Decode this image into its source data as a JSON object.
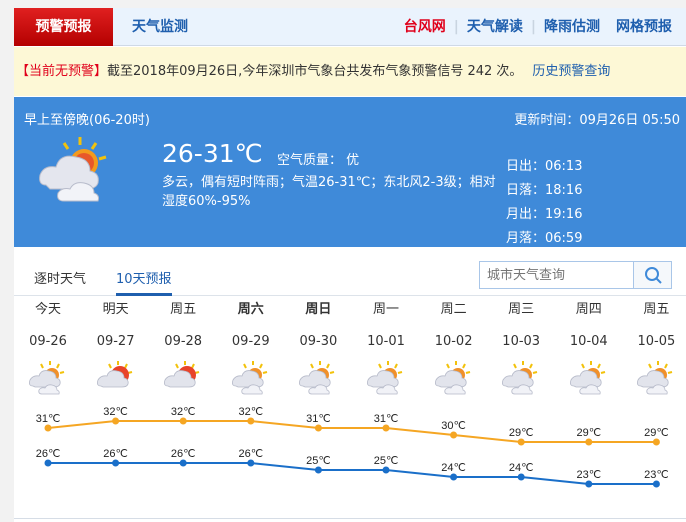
{
  "nav": {
    "active_tab": "预警预报",
    "tab2": "天气监测",
    "links": [
      {
        "label": "台风网",
        "color": "#e0001b"
      },
      {
        "label": "天气解读"
      },
      {
        "label": "降雨估测"
      },
      {
        "label": "网格预报"
      }
    ]
  },
  "warning": {
    "status": "【当前无预警】",
    "text": "截至2018年09月26日,今年深圳市气象台共发布气象预警信号 242 次。",
    "history_link": "历史预警查询"
  },
  "current": {
    "period": "早上至傍晚(06-20时)",
    "update": "更新时间：09月26日 05:50",
    "temp": "26-31℃",
    "air_quality": "空气质量： 优",
    "desc": "多云，偶有短时阵雨；气温26-31℃；东北风2-3级；相对湿度60%-95%",
    "icon": "partly-cloudy-shower-icon",
    "sunrise": "日出：06:13",
    "sunset": "日落：18:16",
    "moonrise": "月出：19:16",
    "moonset": "月落：06:59"
  },
  "tabs": {
    "hourly": "逐时天气",
    "ten_day": "10天预报",
    "active": "10天预报"
  },
  "search": {
    "placeholder": "城市天气查询",
    "icon": "search-icon"
  },
  "colors": {
    "high": "#f5a623",
    "low": "#1a6fc9",
    "panel": "#3f8ad9",
    "brand_red": "#c80000"
  },
  "forecast": [
    {
      "day": "今天",
      "date": "09-26",
      "bold": false,
      "icon": "cloudy-sun",
      "high": "31℃",
      "low": "26℃"
    },
    {
      "day": "明天",
      "date": "09-27",
      "bold": false,
      "icon": "sunny-cloud",
      "high": "32℃",
      "low": "26℃"
    },
    {
      "day": "周五",
      "date": "09-28",
      "bold": false,
      "icon": "sunny-cloud",
      "high": "32℃",
      "low": "26℃"
    },
    {
      "day": "周六",
      "date": "09-29",
      "bold": true,
      "icon": "cloudy-sun",
      "high": "32℃",
      "low": "26℃"
    },
    {
      "day": "周日",
      "date": "09-30",
      "bold": true,
      "icon": "cloudy-sun",
      "high": "31℃",
      "low": "25℃"
    },
    {
      "day": "周一",
      "date": "10-01",
      "bold": false,
      "icon": "cloudy-sun",
      "high": "31℃",
      "low": "25℃"
    },
    {
      "day": "周二",
      "date": "10-02",
      "bold": false,
      "icon": "cloudy-sun",
      "high": "30℃",
      "low": "24℃"
    },
    {
      "day": "周三",
      "date": "10-03",
      "bold": false,
      "icon": "cloudy-sun",
      "high": "29℃",
      "low": "24℃"
    },
    {
      "day": "周四",
      "date": "10-04",
      "bold": false,
      "icon": "cloudy-sun",
      "high": "29℃",
      "low": "23℃"
    },
    {
      "day": "周五",
      "date": "10-05",
      "bold": false,
      "icon": "cloudy-sun",
      "high": "29℃",
      "low": "23℃"
    }
  ],
  "chart_data": {
    "type": "line",
    "categories": [
      "09-26",
      "09-27",
      "09-28",
      "09-29",
      "09-30",
      "10-01",
      "10-02",
      "10-03",
      "10-04",
      "10-05"
    ],
    "series": [
      {
        "values": [
          31,
          32,
          32,
          32,
          31,
          31,
          30,
          29,
          29,
          29
        ],
        "color": "#f5a623"
      },
      {
        "values": [
          26,
          26,
          26,
          26,
          25,
          25,
          24,
          24,
          23,
          23
        ],
        "color": "#1a6fc9"
      }
    ],
    "unit": "℃"
  }
}
